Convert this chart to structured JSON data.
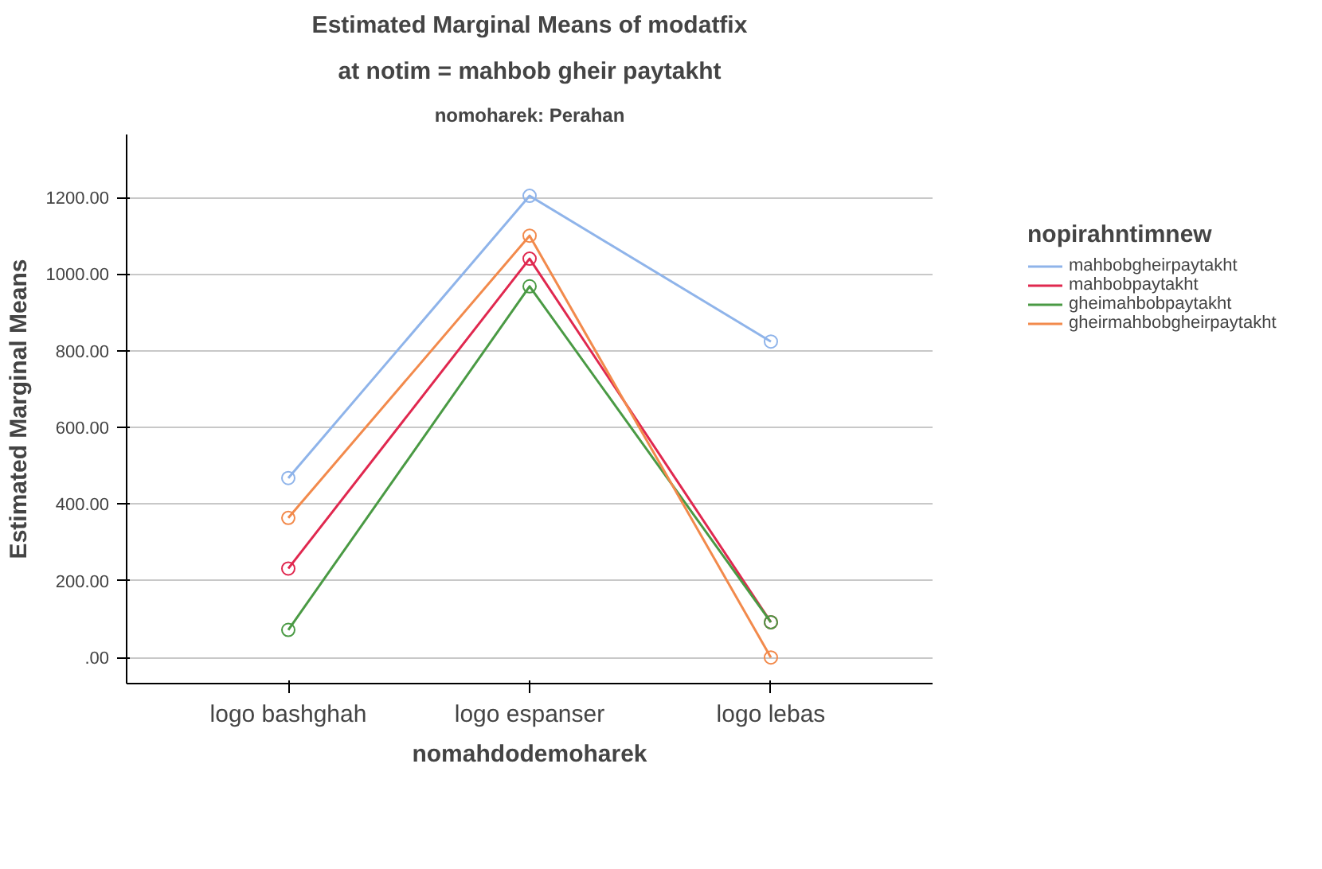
{
  "chart_data": {
    "type": "line",
    "title": "Estimated Marginal Means of modatfix",
    "subtitle": "at notim = mahbob gheir paytakht",
    "annotations": [
      "nomoharek: Perahan"
    ],
    "xlabel": "nomahdodemoharek",
    "ylabel": "Estimated Marginal Means",
    "legend_title": "nopirahntimnew",
    "categories": [
      "logo bashghah",
      "logo espanser",
      "logo lebas"
    ],
    "series": [
      {
        "name": "mahbobgheirpaytakht",
        "color": "#8fb4ea",
        "values": [
          468,
          1204,
          824
        ]
      },
      {
        "name": "mahbobpaytakht",
        "color": "#e0284f",
        "values": [
          232,
          1040,
          92
        ]
      },
      {
        "name": "gheimahbobpaytakht",
        "color": "#4a9a44",
        "values": [
          72,
          968,
          92
        ]
      },
      {
        "name": "gheirmahbobgheirpaytakht",
        "color": "#f28a4c",
        "values": [
          364,
          1100,
          0
        ]
      }
    ],
    "ylim": [
      -68,
      1364
    ],
    "yticks": [
      {
        "value": 0,
        "label": ".00"
      },
      {
        "value": 200,
        "label": "200.00"
      },
      {
        "value": 400,
        "label": "400.00"
      },
      {
        "value": 600,
        "label": "600.00"
      },
      {
        "value": 800,
        "label": "800.00"
      },
      {
        "value": 1000,
        "label": "1000.00"
      },
      {
        "value": 1200,
        "label": "1200.00"
      }
    ],
    "grid": "y",
    "legend": "top right",
    "marker": "circle",
    "line_style": "solid"
  }
}
